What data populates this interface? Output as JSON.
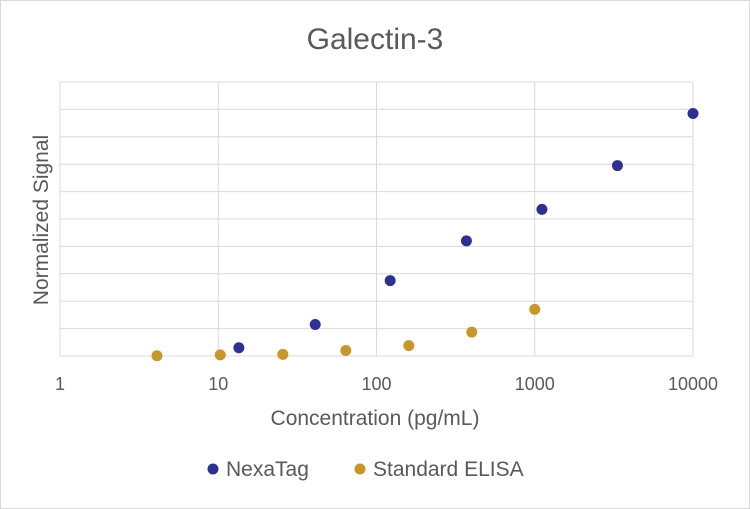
{
  "chart_data": {
    "type": "scatter",
    "title": "Galectin-3",
    "xlabel": "Concentration (pg/mL)",
    "ylabel": "Normalized Signal",
    "x_scale": "log",
    "xlim": [
      1,
      10000
    ],
    "x_ticks": [
      "1",
      "10",
      "100",
      "1000",
      "10000"
    ],
    "ylim": [
      0,
      1
    ],
    "y_tick_labels_visible": false,
    "grid": true,
    "legend_position": "bottom",
    "series": [
      {
        "name": "NexaTag",
        "color": "#2E3192",
        "x": [
          13.5,
          41,
          122,
          370,
          1110,
          3330,
          10000
        ],
        "y": [
          0.03,
          0.115,
          0.275,
          0.42,
          0.535,
          0.695,
          0.885
        ]
      },
      {
        "name": "Standard ELISA",
        "color": "#C9962B",
        "x": [
          4.1,
          10.3,
          25.6,
          64,
          160,
          400,
          1000
        ],
        "y": [
          0.001,
          0.004,
          0.006,
          0.02,
          0.038,
          0.087,
          0.17
        ]
      }
    ]
  }
}
